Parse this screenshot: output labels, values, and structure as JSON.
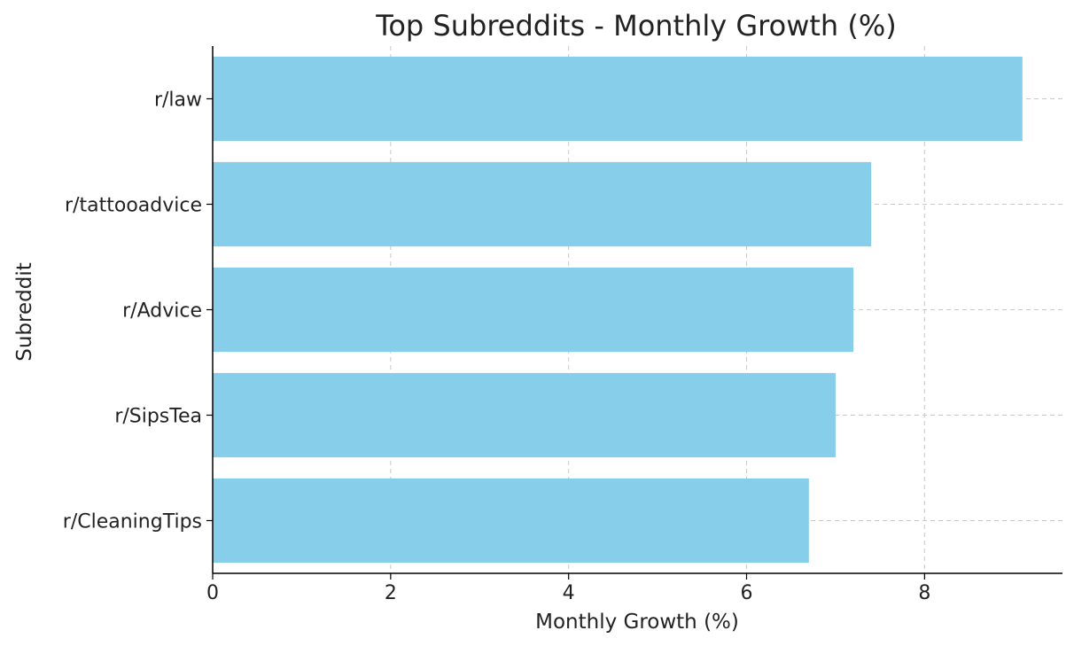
{
  "chart_data": {
    "type": "bar",
    "orientation": "horizontal",
    "title": "Top Subreddits - Monthly Growth (%)",
    "xlabel": "Monthly Growth (%)",
    "ylabel": "Subreddit",
    "categories": [
      "r/law",
      "r/tattooadvice",
      "r/Advice",
      "r/SipsTea",
      "r/CleaningTips"
    ],
    "values": [
      9.1,
      7.4,
      7.2,
      7.0,
      6.7
    ],
    "xlim": [
      0,
      9.55
    ],
    "xticks": [
      0,
      2,
      4,
      6,
      8
    ],
    "xtick_labels": [
      "0",
      "2",
      "4",
      "6",
      "8"
    ],
    "grid": true,
    "bar_color": "#87CEEB"
  }
}
